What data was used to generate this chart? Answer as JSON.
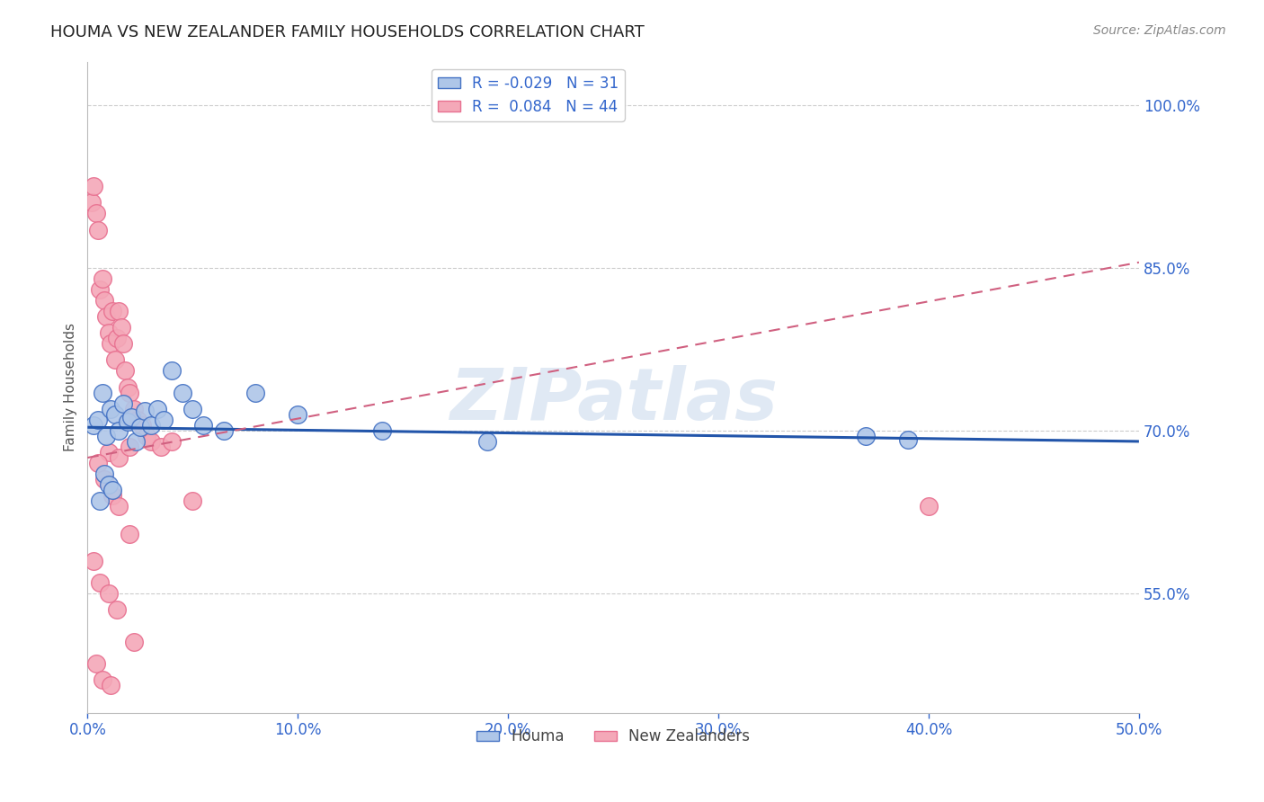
{
  "title": "HOUMA VS NEW ZEALANDER FAMILY HOUSEHOLDS CORRELATION CHART",
  "source": "Source: ZipAtlas.com",
  "ylabel": "Family Households",
  "xlim": [
    0.0,
    50.0
  ],
  "ylim": [
    44.0,
    104.0
  ],
  "yticks": [
    55.0,
    70.0,
    85.0,
    100.0
  ],
  "xticks": [
    0.0,
    10.0,
    20.0,
    30.0,
    40.0,
    50.0
  ],
  "xtick_labels": [
    "0.0%",
    "10.0%",
    "20.0%",
    "30.0%",
    "40.0%",
    "50.0%"
  ],
  "houma_R": -0.029,
  "houma_N": 31,
  "nz_R": 0.084,
  "nz_N": 44,
  "houma_color": "#aec6e8",
  "nz_color": "#f4a8b8",
  "houma_edge_color": "#4472c4",
  "nz_edge_color": "#e87090",
  "houma_line_color": "#2255aa",
  "nz_line_color": "#d06080",
  "grid_color": "#cccccc",
  "watermark": "ZIPatlas",
  "houma_line_y0": 70.3,
  "houma_line_y1": 69.0,
  "nz_line_y0": 67.5,
  "nz_line_y1": 85.5,
  "houma_scatter_x": [
    0.3,
    0.5,
    0.7,
    0.9,
    1.1,
    1.3,
    1.5,
    1.7,
    1.9,
    2.1,
    2.3,
    2.5,
    2.7,
    3.0,
    3.3,
    3.6,
    4.0,
    4.5,
    5.0,
    5.5,
    6.5,
    8.0,
    10.0,
    14.0,
    19.0,
    0.6,
    0.8,
    1.0,
    1.2,
    37.0,
    39.0
  ],
  "houma_scatter_y": [
    70.5,
    71.0,
    73.5,
    69.5,
    72.0,
    71.5,
    70.0,
    72.5,
    70.8,
    71.2,
    69.0,
    70.3,
    71.8,
    70.5,
    72.0,
    71.0,
    75.5,
    73.5,
    72.0,
    70.5,
    70.0,
    73.5,
    71.5,
    70.0,
    69.0,
    63.5,
    66.0,
    65.0,
    64.5,
    69.5,
    69.2
  ],
  "nz_scatter_x": [
    0.2,
    0.3,
    0.4,
    0.5,
    0.6,
    0.7,
    0.8,
    0.9,
    1.0,
    1.1,
    1.2,
    1.3,
    1.4,
    1.5,
    1.6,
    1.7,
    1.8,
    1.9,
    2.0,
    2.2,
    2.4,
    2.6,
    2.8,
    3.0,
    3.5,
    4.0,
    1.0,
    1.5,
    2.0,
    0.5,
    0.8,
    1.2,
    1.5,
    2.0,
    0.3,
    0.6,
    1.0,
    1.4,
    2.2,
    5.0,
    0.4,
    0.7,
    1.1,
    40.0
  ],
  "nz_scatter_y": [
    91.0,
    92.5,
    90.0,
    88.5,
    83.0,
    84.0,
    82.0,
    80.5,
    79.0,
    78.0,
    81.0,
    76.5,
    78.5,
    81.0,
    79.5,
    78.0,
    75.5,
    74.0,
    73.5,
    72.0,
    71.0,
    70.5,
    69.5,
    69.0,
    68.5,
    69.0,
    68.0,
    67.5,
    68.5,
    67.0,
    65.5,
    64.0,
    63.0,
    60.5,
    58.0,
    56.0,
    55.0,
    53.5,
    50.5,
    63.5,
    48.5,
    47.0,
    46.5,
    63.0
  ]
}
